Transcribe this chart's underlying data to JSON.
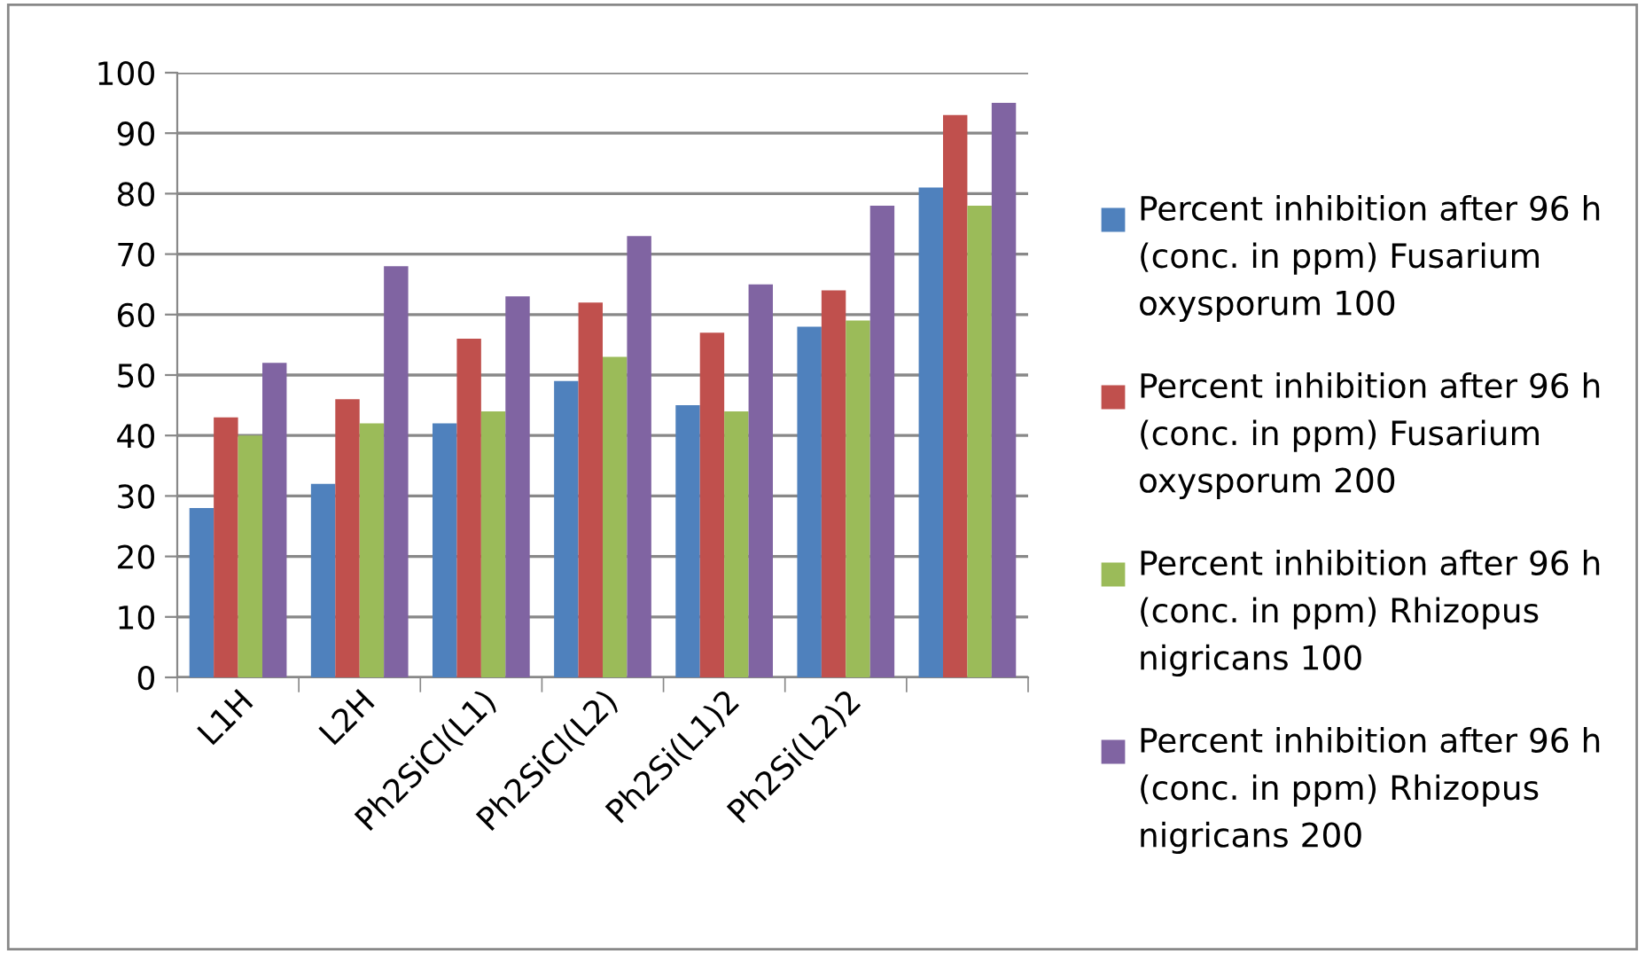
{
  "chart_data": {
    "type": "bar",
    "categories": [
      "L1H",
      "L2H",
      "Ph2SiCl(L1)",
      "Ph2SiCl(L2)",
      "Ph2Si(L1)2",
      "Ph2Si(L2)2",
      null
    ],
    "series": [
      {
        "name": "Percent inhibition after 96 h (conc. in ppm) Fusarium oxysporum 100",
        "color": "#4f81bd",
        "values": [
          28,
          32,
          42,
          49,
          45,
          58,
          81
        ]
      },
      {
        "name": "Percent inhibition after 96 h (conc. in ppm) Fusarium oxysporum 200",
        "color": "#c0504d",
        "values": [
          43,
          46,
          56,
          62,
          57,
          64,
          93
        ]
      },
      {
        "name": "Percent inhibition after 96 h (conc. in ppm) Rhizopus nigricans 100",
        "color": "#9bbb59",
        "values": [
          40,
          42,
          44,
          53,
          44,
          59,
          78
        ]
      },
      {
        "name": "Percent inhibition after 96 h (conc. in ppm) Rhizopus nigricans 200",
        "color": "#8064a2",
        "values": [
          52,
          68,
          63,
          73,
          65,
          78,
          95
        ]
      }
    ],
    "ylim": [
      0,
      100
    ],
    "yticks": [
      0,
      10,
      20,
      30,
      40,
      50,
      60,
      70,
      80,
      90,
      100
    ],
    "grid": "y",
    "legend": "right"
  }
}
